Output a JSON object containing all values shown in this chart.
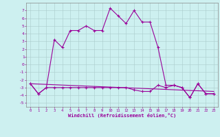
{
  "xlabel": "Windchill (Refroidissement éolien,°C)",
  "background_color": "#cdf0f0",
  "grid_color": "#aacccc",
  "line_color": "#990099",
  "xlim": [
    -0.5,
    23.5
  ],
  "ylim": [
    -5.5,
    8.0
  ],
  "yticks": [
    -5,
    -4,
    -3,
    -2,
    -1,
    0,
    1,
    2,
    3,
    4,
    5,
    6,
    7
  ],
  "xticks": [
    0,
    1,
    2,
    3,
    4,
    5,
    6,
    7,
    8,
    9,
    10,
    11,
    12,
    13,
    14,
    15,
    16,
    17,
    18,
    19,
    20,
    21,
    22,
    23
  ],
  "series1_x": [
    0,
    1,
    2,
    3,
    4,
    5,
    6,
    7,
    8,
    9,
    10,
    11,
    12,
    13,
    14,
    15,
    16,
    17,
    18,
    19,
    20,
    21,
    22,
    23
  ],
  "series1_y": [
    -2.5,
    -3.8,
    -3.0,
    3.2,
    2.2,
    4.4,
    4.4,
    5.0,
    4.4,
    4.4,
    7.3,
    6.3,
    5.3,
    7.0,
    5.5,
    5.5,
    2.2,
    -2.7,
    -2.7,
    -3.0,
    -4.3,
    -2.5,
    -3.8,
    -3.8
  ],
  "series2_x": [
    0,
    1,
    2,
    3,
    4,
    5,
    6,
    7,
    8,
    9,
    10,
    11,
    12,
    13,
    14,
    15,
    16,
    17,
    18,
    19,
    20,
    21,
    22,
    23
  ],
  "series2_y": [
    -2.5,
    -3.8,
    -3.0,
    -3.0,
    -3.0,
    -3.0,
    -3.0,
    -3.0,
    -3.0,
    -3.0,
    -3.0,
    -3.0,
    -3.0,
    -3.3,
    -3.5,
    -3.5,
    -2.7,
    -3.0,
    -2.7,
    -3.0,
    -4.3,
    -2.5,
    -3.8,
    -3.8
  ],
  "series3_x": [
    0,
    23
  ],
  "series3_y": [
    -2.5,
    -3.5
  ]
}
